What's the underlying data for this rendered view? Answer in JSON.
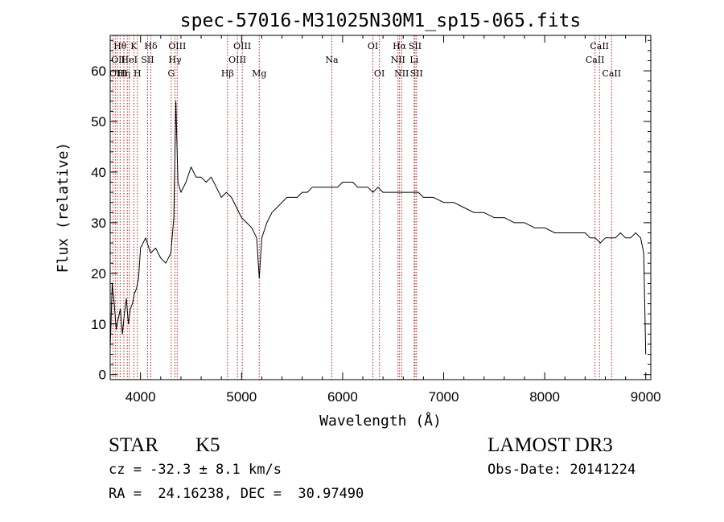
{
  "chart_data": {
    "type": "line",
    "title": "spec-57016-M31025N30M1_sp15-065.fits",
    "xlabel": "Wavelength (Å)",
    "ylabel": "Flux (relative)",
    "xlim": [
      3700,
      9050
    ],
    "ylim": [
      -1,
      67
    ],
    "xticks": [
      4000,
      5000,
      6000,
      7000,
      8000,
      9000
    ],
    "yticks": [
      0,
      10,
      20,
      30,
      40,
      50,
      60
    ],
    "grid": false,
    "series": [
      {
        "x": [
          3700,
          3720,
          3740,
          3760,
          3780,
          3800,
          3820,
          3840,
          3860,
          3880,
          3900,
          3920,
          3940,
          3960,
          3980,
          4000,
          4050,
          4100,
          4150,
          4200,
          4250,
          4300,
          4330,
          4350,
          4370,
          4400,
          4450,
          4500,
          4550,
          4600,
          4650,
          4700,
          4750,
          4800,
          4850,
          4900,
          4950,
          5000,
          5050,
          5100,
          5150,
          5175,
          5200,
          5250,
          5300,
          5350,
          5400,
          5450,
          5500,
          5550,
          5600,
          5650,
          5700,
          5750,
          5800,
          5850,
          5900,
          5950,
          6000,
          6050,
          6100,
          6150,
          6200,
          6250,
          6300,
          6350,
          6400,
          6450,
          6500,
          6550,
          6600,
          6650,
          6700,
          6750,
          6800,
          6900,
          7000,
          7100,
          7200,
          7300,
          7400,
          7500,
          7600,
          7700,
          7800,
          7900,
          8000,
          8100,
          8200,
          8300,
          8400,
          8450,
          8500,
          8550,
          8600,
          8650,
          8700,
          8750,
          8800,
          8850,
          8900,
          8950,
          8980,
          9000
        ],
        "values": [
          5,
          18,
          14,
          9,
          11,
          13,
          8,
          12,
          15,
          10,
          13,
          14,
          16,
          17,
          19,
          25,
          27,
          24,
          25,
          23,
          22,
          24,
          31,
          54,
          38,
          36,
          38,
          41,
          39,
          39,
          38,
          39,
          37,
          35,
          36,
          35,
          33,
          31,
          30,
          29,
          27,
          19,
          27,
          30,
          32,
          33,
          34,
          35,
          35,
          35,
          36,
          36,
          37,
          37,
          37,
          37,
          37,
          37,
          38,
          38,
          38,
          37,
          37,
          37,
          36,
          37,
          36,
          36,
          36,
          36,
          36,
          36,
          36,
          36,
          35,
          35,
          34,
          34,
          33,
          32,
          32,
          31,
          31,
          30,
          30,
          29,
          29,
          28,
          28,
          28,
          28,
          27,
          27,
          26,
          27,
          27,
          27,
          28,
          27,
          27,
          28,
          27,
          24,
          4
        ]
      }
    ],
    "annotations": [
      {
        "text": "Hθ",
        "x": 3798,
        "row": 1
      },
      {
        "text": "K",
        "x": 3934,
        "row": 1
      },
      {
        "text": "Hδ",
        "x": 4102,
        "row": 1
      },
      {
        "text": "OII",
        "x": 3727,
        "row": 2
      },
      {
        "text": "HeI",
        "x": 3889,
        "row": 2
      },
      {
        "text": "SII",
        "x": 4070,
        "row": 2
      },
      {
        "text": "OIII",
        "x": 3727,
        "row": 3
      },
      {
        "text": "Hη",
        "x": 3835,
        "row": 3
      },
      {
        "text": "H",
        "x": 3969,
        "row": 3
      },
      {
        "text": "OIII",
        "x": 4363,
        "row": 1
      },
      {
        "text": "Hγ",
        "x": 4341,
        "row": 2
      },
      {
        "text": "G",
        "x": 4304,
        "row": 3
      },
      {
        "text": "OIII",
        "x": 5007,
        "row": 1
      },
      {
        "text": "OIII",
        "x": 4959,
        "row": 2
      },
      {
        "text": "Hβ",
        "x": 4861,
        "row": 3
      },
      {
        "text": "Mg",
        "x": 5175,
        "row": 3
      },
      {
        "text": "Na",
        "x": 5893,
        "row": 2
      },
      {
        "text": "OI",
        "x": 6300,
        "row": 1
      },
      {
        "text": "OI",
        "x": 6364,
        "row": 3
      },
      {
        "text": "Hα",
        "x": 6563,
        "row": 1
      },
      {
        "text": "SII",
        "x": 6717,
        "row": 1
      },
      {
        "text": "NII",
        "x": 6548,
        "row": 2
      },
      {
        "text": "Li",
        "x": 6708,
        "row": 2
      },
      {
        "text": "NII",
        "x": 6584,
        "row": 3
      },
      {
        "text": "SII",
        "x": 6731,
        "row": 3
      },
      {
        "text": "CaII",
        "x": 8542,
        "row": 1
      },
      {
        "text": "CaII",
        "x": 8498,
        "row": 2
      },
      {
        "text": "CaII",
        "x": 8662,
        "row": 3
      }
    ],
    "line_marks": [
      3727,
      3750,
      3771,
      3798,
      3835,
      3869,
      3889,
      3934,
      3969,
      4070,
      4102,
      4304,
      4341,
      4363,
      4861,
      4959,
      5007,
      5175,
      5893,
      6300,
      6364,
      6548,
      6563,
      6584,
      6708,
      6717,
      6731,
      8498,
      8542,
      8662
    ],
    "line_mark_color": "#b22222",
    "line_color": "#000000"
  },
  "info": {
    "class": "STAR",
    "subclass": "K5",
    "survey": "LAMOST DR3",
    "cz": "cz = -32.3 ± 8.1 km/s",
    "obs_date": "Obs-Date: 20141224",
    "coords": "RA =  24.16238, DEC =  30.97490"
  }
}
